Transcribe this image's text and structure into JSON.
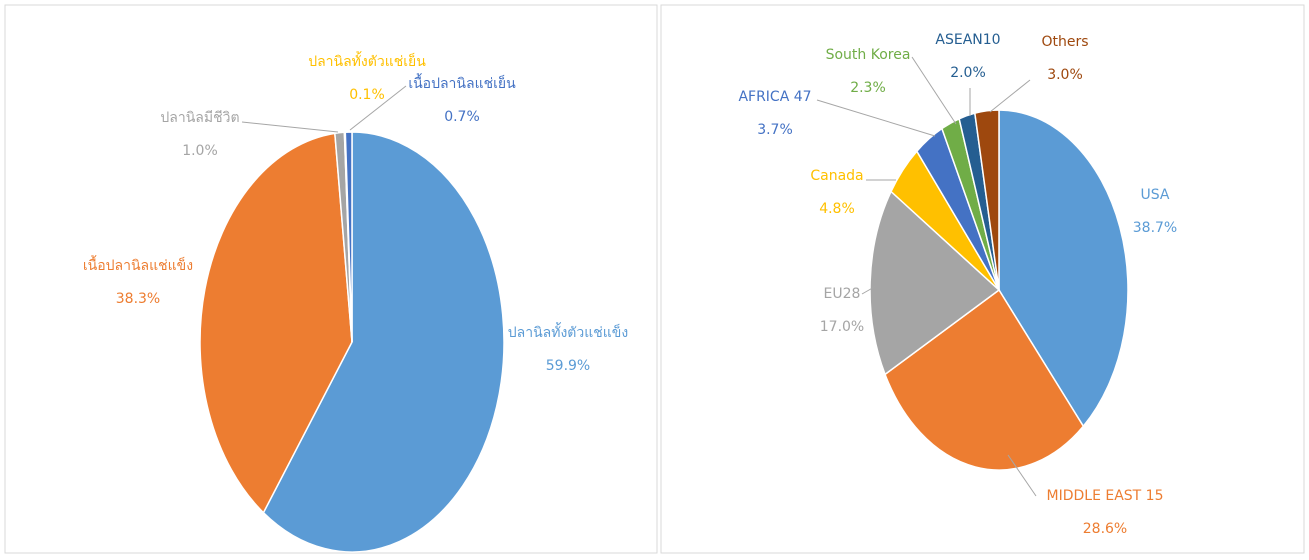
{
  "chart_data": [
    {
      "type": "pie",
      "categories": [
        "ปลานิลทั้งตัวแช่แข็ง",
        "เนื้อปลานิลแช่แข็ง",
        "ปลานิลมีชีวิต",
        "ปลานิลทั้งตัวแช่เย็น",
        "เนื้อปลานิลแช่เย็น"
      ],
      "values": [
        59.9,
        38.3,
        1.0,
        0.1,
        0.7
      ],
      "value_labels": [
        "59.9%",
        "38.3%",
        "1.0%",
        "0.1%",
        "0.7%"
      ],
      "colors": [
        "#5b9bd5",
        "#ed7d31",
        "#a5a5a5",
        "#ffc000",
        "#4472c4"
      ]
    },
    {
      "type": "pie",
      "categories": [
        "USA",
        "MIDDLE EAST 15",
        "EU28",
        "Canada",
        "AFRICA 47",
        "South Korea",
        "ASEAN10",
        "Others"
      ],
      "values": [
        38.7,
        28.6,
        17.0,
        4.8,
        3.7,
        2.3,
        2.0,
        3.0
      ],
      "value_labels": [
        "38.7%",
        "28.6%",
        "17.0%",
        "4.8%",
        "3.7%",
        "2.3%",
        "2.0%",
        "3.0%"
      ],
      "colors": [
        "#5b9bd5",
        "#ed7d31",
        "#a5a5a5",
        "#ffc000",
        "#4472c4",
        "#70ad47",
        "#255e91",
        "#9e480e"
      ]
    }
  ]
}
